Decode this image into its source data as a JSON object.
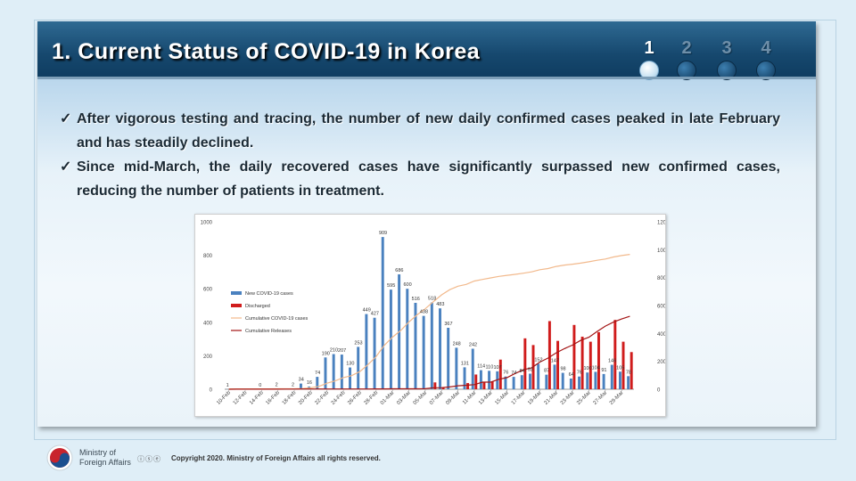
{
  "slide": {
    "title": "1. Current Status of COVID-19 in Korea",
    "steps": [
      "1",
      "2",
      "3",
      "4"
    ],
    "active_step": "1",
    "bullets": [
      "After vigorous testing and tracing, the number of new daily confirmed cases peaked in late February and has steadily declined.",
      "Since mid-March, the daily recovered cases have significantly surpassed new confirmed cases, reducing the number of patients in treatment."
    ],
    "bullet_mark": "✓"
  },
  "footer": {
    "ministry_line1": "Ministry of",
    "ministry_line2": "Foreign Affairs",
    "license_icons": "ⓘⓢⓔ",
    "copyright": "Copyright 2020. Ministry of Foreign Affairs all rights reserved."
  },
  "colors": {
    "new_cases": "#4a81bf",
    "discharged": "#d01c1c",
    "cumulative_cases": "#f2b98c",
    "cumulative_releases": "#a31515"
  },
  "chart_data": {
    "type": "bar",
    "categories": [
      "10-Feb",
      "11-Feb",
      "12-Feb",
      "13-Feb",
      "14-Feb",
      "15-Feb",
      "16-Feb",
      "17-Feb",
      "18-Feb",
      "19-Feb",
      "20-Feb",
      "21-Feb",
      "22-Feb",
      "23-Feb",
      "24-Feb",
      "25-Feb",
      "26-Feb",
      "27-Feb",
      "28-Feb",
      "29-Feb",
      "01-Mar",
      "02-Mar",
      "03-Mar",
      "04-Mar",
      "05-Mar",
      "06-Mar",
      "07-Mar",
      "08-Mar",
      "09-Mar",
      "10-Mar",
      "11-Mar",
      "12-Mar",
      "13-Mar",
      "14-Mar",
      "15-Mar",
      "16-Mar",
      "17-Mar",
      "18-Mar",
      "19-Mar",
      "20-Mar",
      "21-Mar",
      "22-Mar",
      "23-Mar",
      "24-Mar",
      "25-Mar",
      "26-Mar",
      "27-Mar",
      "28-Mar",
      "29-Mar",
      "30-Mar"
    ],
    "x_tick_labels": [
      "10-Feb",
      "12-Feb",
      "14-Feb",
      "16-Feb",
      "18-Feb",
      "20-Feb",
      "22-Feb",
      "24-Feb",
      "26-Feb",
      "28-Feb",
      "01-Mar",
      "03-Mar",
      "05-Mar",
      "07-Mar",
      "09-Mar",
      "11-Mar",
      "13-Mar",
      "15-Mar",
      "17-Mar",
      "19-Mar",
      "21-Mar",
      "23-Mar",
      "25-Mar",
      "27-Mar",
      "29-Mar"
    ],
    "series": [
      {
        "name": "New COVID-19 cases",
        "type": "bar",
        "axis": "left",
        "values": [
          1,
          0,
          0,
          0,
          0,
          0,
          2,
          0,
          2,
          34,
          16,
          74,
          190,
          210,
          207,
          130,
          253,
          449,
          427,
          909,
          595,
          686,
          600,
          516,
          438,
          518,
          483,
          367,
          248,
          131,
          242,
          114,
          110,
          107,
          76,
          74,
          84,
          93,
          152,
          87,
          147,
          98,
          64,
          76,
          100,
          104,
          91,
          146,
          105,
          78
        ]
      },
      {
        "name": "Discharged",
        "type": "bar",
        "axis": "left",
        "values": [
          0,
          0,
          0,
          0,
          0,
          0,
          0,
          0,
          0,
          0,
          0,
          0,
          0,
          0,
          0,
          0,
          0,
          0,
          0,
          0,
          0,
          0,
          0,
          0,
          0,
          41,
          12,
          0,
          0,
          37,
          88,
          41,
          45,
          177,
          0,
          0,
          304,
          264,
          0,
          407,
          289,
          0,
          384,
          314,
          284,
          341,
          0,
          414,
          284,
          222
        ]
      },
      {
        "name": "Cumulative COVID-19 cases",
        "type": "line",
        "axis": "right",
        "values": [
          27,
          27,
          28,
          28,
          28,
          28,
          29,
          30,
          31,
          51,
          104,
          204,
          433,
          602,
          833,
          977,
          1261,
          1766,
          2337,
          3150,
          3736,
          4212,
          4812,
          5328,
          5766,
          6284,
          6767,
          7134,
          7382,
          7513,
          7755,
          7869,
          7979,
          8086,
          8162,
          8236,
          8320,
          8413,
          8565,
          8652,
          8799,
          8897,
          8961,
          9037,
          9137,
          9241,
          9332,
          9478,
          9583,
          9661
        ]
      },
      {
        "name": "Cumulative Releases",
        "type": "line",
        "axis": "right",
        "values": [
          3,
          4,
          7,
          7,
          7,
          9,
          9,
          10,
          12,
          16,
          16,
          16,
          17,
          18,
          18,
          22,
          22,
          22,
          24,
          27,
          30,
          30,
          30,
          34,
          41,
          108,
          118,
          166,
          247,
          288,
          333,
          510,
          510,
          714,
          834,
          1137,
          1401,
          1540,
          1947,
          2233,
          2612,
          2909,
          3166,
          3507,
          3730,
          4144,
          4528,
          4811,
          5033,
          5228
        ]
      }
    ],
    "data_labels": {
      "series": "New COVID-19 cases",
      "shown": [
        [
          0,
          "1"
        ],
        [
          4,
          "0"
        ],
        [
          6,
          "2"
        ],
        [
          8,
          "2"
        ],
        [
          9,
          "34"
        ],
        [
          10,
          "16"
        ],
        [
          11,
          "74"
        ],
        [
          12,
          "190"
        ],
        [
          13,
          "210"
        ],
        [
          14,
          "207"
        ],
        [
          15,
          "130"
        ],
        [
          16,
          "253"
        ],
        [
          17,
          "449"
        ],
        [
          18,
          "427"
        ],
        [
          19,
          "909"
        ],
        [
          20,
          "595"
        ],
        [
          21,
          "686"
        ],
        [
          22,
          "600"
        ],
        [
          23,
          "516"
        ],
        [
          24,
          "438"
        ],
        [
          25,
          "518"
        ],
        [
          26,
          "483"
        ],
        [
          27,
          "367"
        ],
        [
          28,
          "248"
        ],
        [
          29,
          "131"
        ],
        [
          30,
          "242"
        ],
        [
          31,
          "114"
        ],
        [
          32,
          "110"
        ],
        [
          33,
          "107"
        ],
        [
          34,
          "76"
        ],
        [
          35,
          "74"
        ],
        [
          36,
          "84"
        ],
        [
          37,
          "93"
        ],
        [
          38,
          "152"
        ],
        [
          39,
          "87"
        ],
        [
          40,
          "147"
        ],
        [
          41,
          "98"
        ],
        [
          42,
          "64"
        ],
        [
          43,
          "76"
        ],
        [
          44,
          "100"
        ],
        [
          45,
          "104"
        ],
        [
          46,
          "91"
        ],
        [
          47,
          "146"
        ],
        [
          48,
          "105"
        ],
        [
          49,
          "78"
        ]
      ]
    },
    "left_axis": {
      "min": 0,
      "max": 1000,
      "ticks": [
        0,
        200,
        400,
        600,
        800,
        1000
      ]
    },
    "right_axis": {
      "min": 0,
      "max": 12000,
      "ticks": [
        0,
        2000,
        4000,
        6000,
        8000,
        10000,
        12000
      ]
    },
    "legend": {
      "placement": "left",
      "entries": [
        "New COVID-19 cases",
        "Discharged",
        "Cumulative COVID-19 cases",
        "Cumulative Releases"
      ]
    },
    "grid": false,
    "title": "",
    "xlabel": "",
    "ylabel": ""
  }
}
